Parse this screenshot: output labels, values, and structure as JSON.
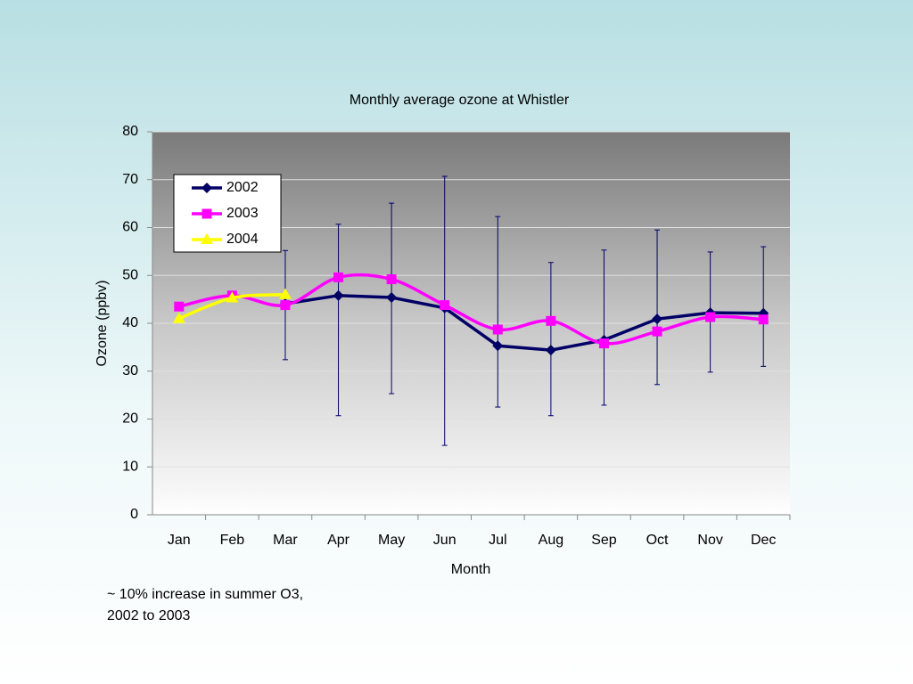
{
  "chart_data": {
    "type": "line",
    "title": "Monthly average ozone at Whistler",
    "xlabel": "Month",
    "ylabel": "Ozone (ppbv)",
    "categories": [
      "Jan",
      "Feb",
      "Mar",
      "Apr",
      "May",
      "Jun",
      "Jul",
      "Aug",
      "Sep",
      "Oct",
      "Nov",
      "Dec"
    ],
    "series": [
      {
        "name": "2002",
        "color": "#000066",
        "marker": "diamond",
        "smooth": false,
        "values": [
          null,
          null,
          44.1,
          45.8,
          45.4,
          43.2,
          35.3,
          34.4,
          36.5,
          40.9,
          42.2,
          42.1
        ],
        "error_plus": [
          null,
          null,
          11.1,
          14.9,
          19.7,
          27.5,
          27,
          18.3,
          18.8,
          18.6,
          12.7,
          13.9
        ],
        "error_minus": [
          null,
          null,
          11.7,
          25.1,
          20.1,
          28.7,
          12.8,
          13.7,
          13.6,
          13.7,
          12.4,
          11.1
        ]
      },
      {
        "name": "2003",
        "color": "#ff00ff",
        "marker": "square",
        "smooth": true,
        "values": [
          43.5,
          45.8,
          43.8,
          49.6,
          49.2,
          43.8,
          38.7,
          40.5,
          35.8,
          38.3,
          41.3,
          40.8
        ]
      },
      {
        "name": "2004",
        "color": "#ffff00",
        "marker": "triangle",
        "smooth": true,
        "values": [
          41,
          45.3,
          46,
          null,
          null,
          null,
          null,
          null,
          null,
          null,
          null,
          null
        ]
      }
    ],
    "ylim": [
      0,
      80
    ],
    "yticks": [
      0,
      10,
      20,
      30,
      40,
      50,
      60,
      70,
      80
    ],
    "grid": true,
    "legend": "upper left",
    "annotation": [
      "~ 10% increase in summer O3,",
      "2002 to 2003"
    ]
  }
}
